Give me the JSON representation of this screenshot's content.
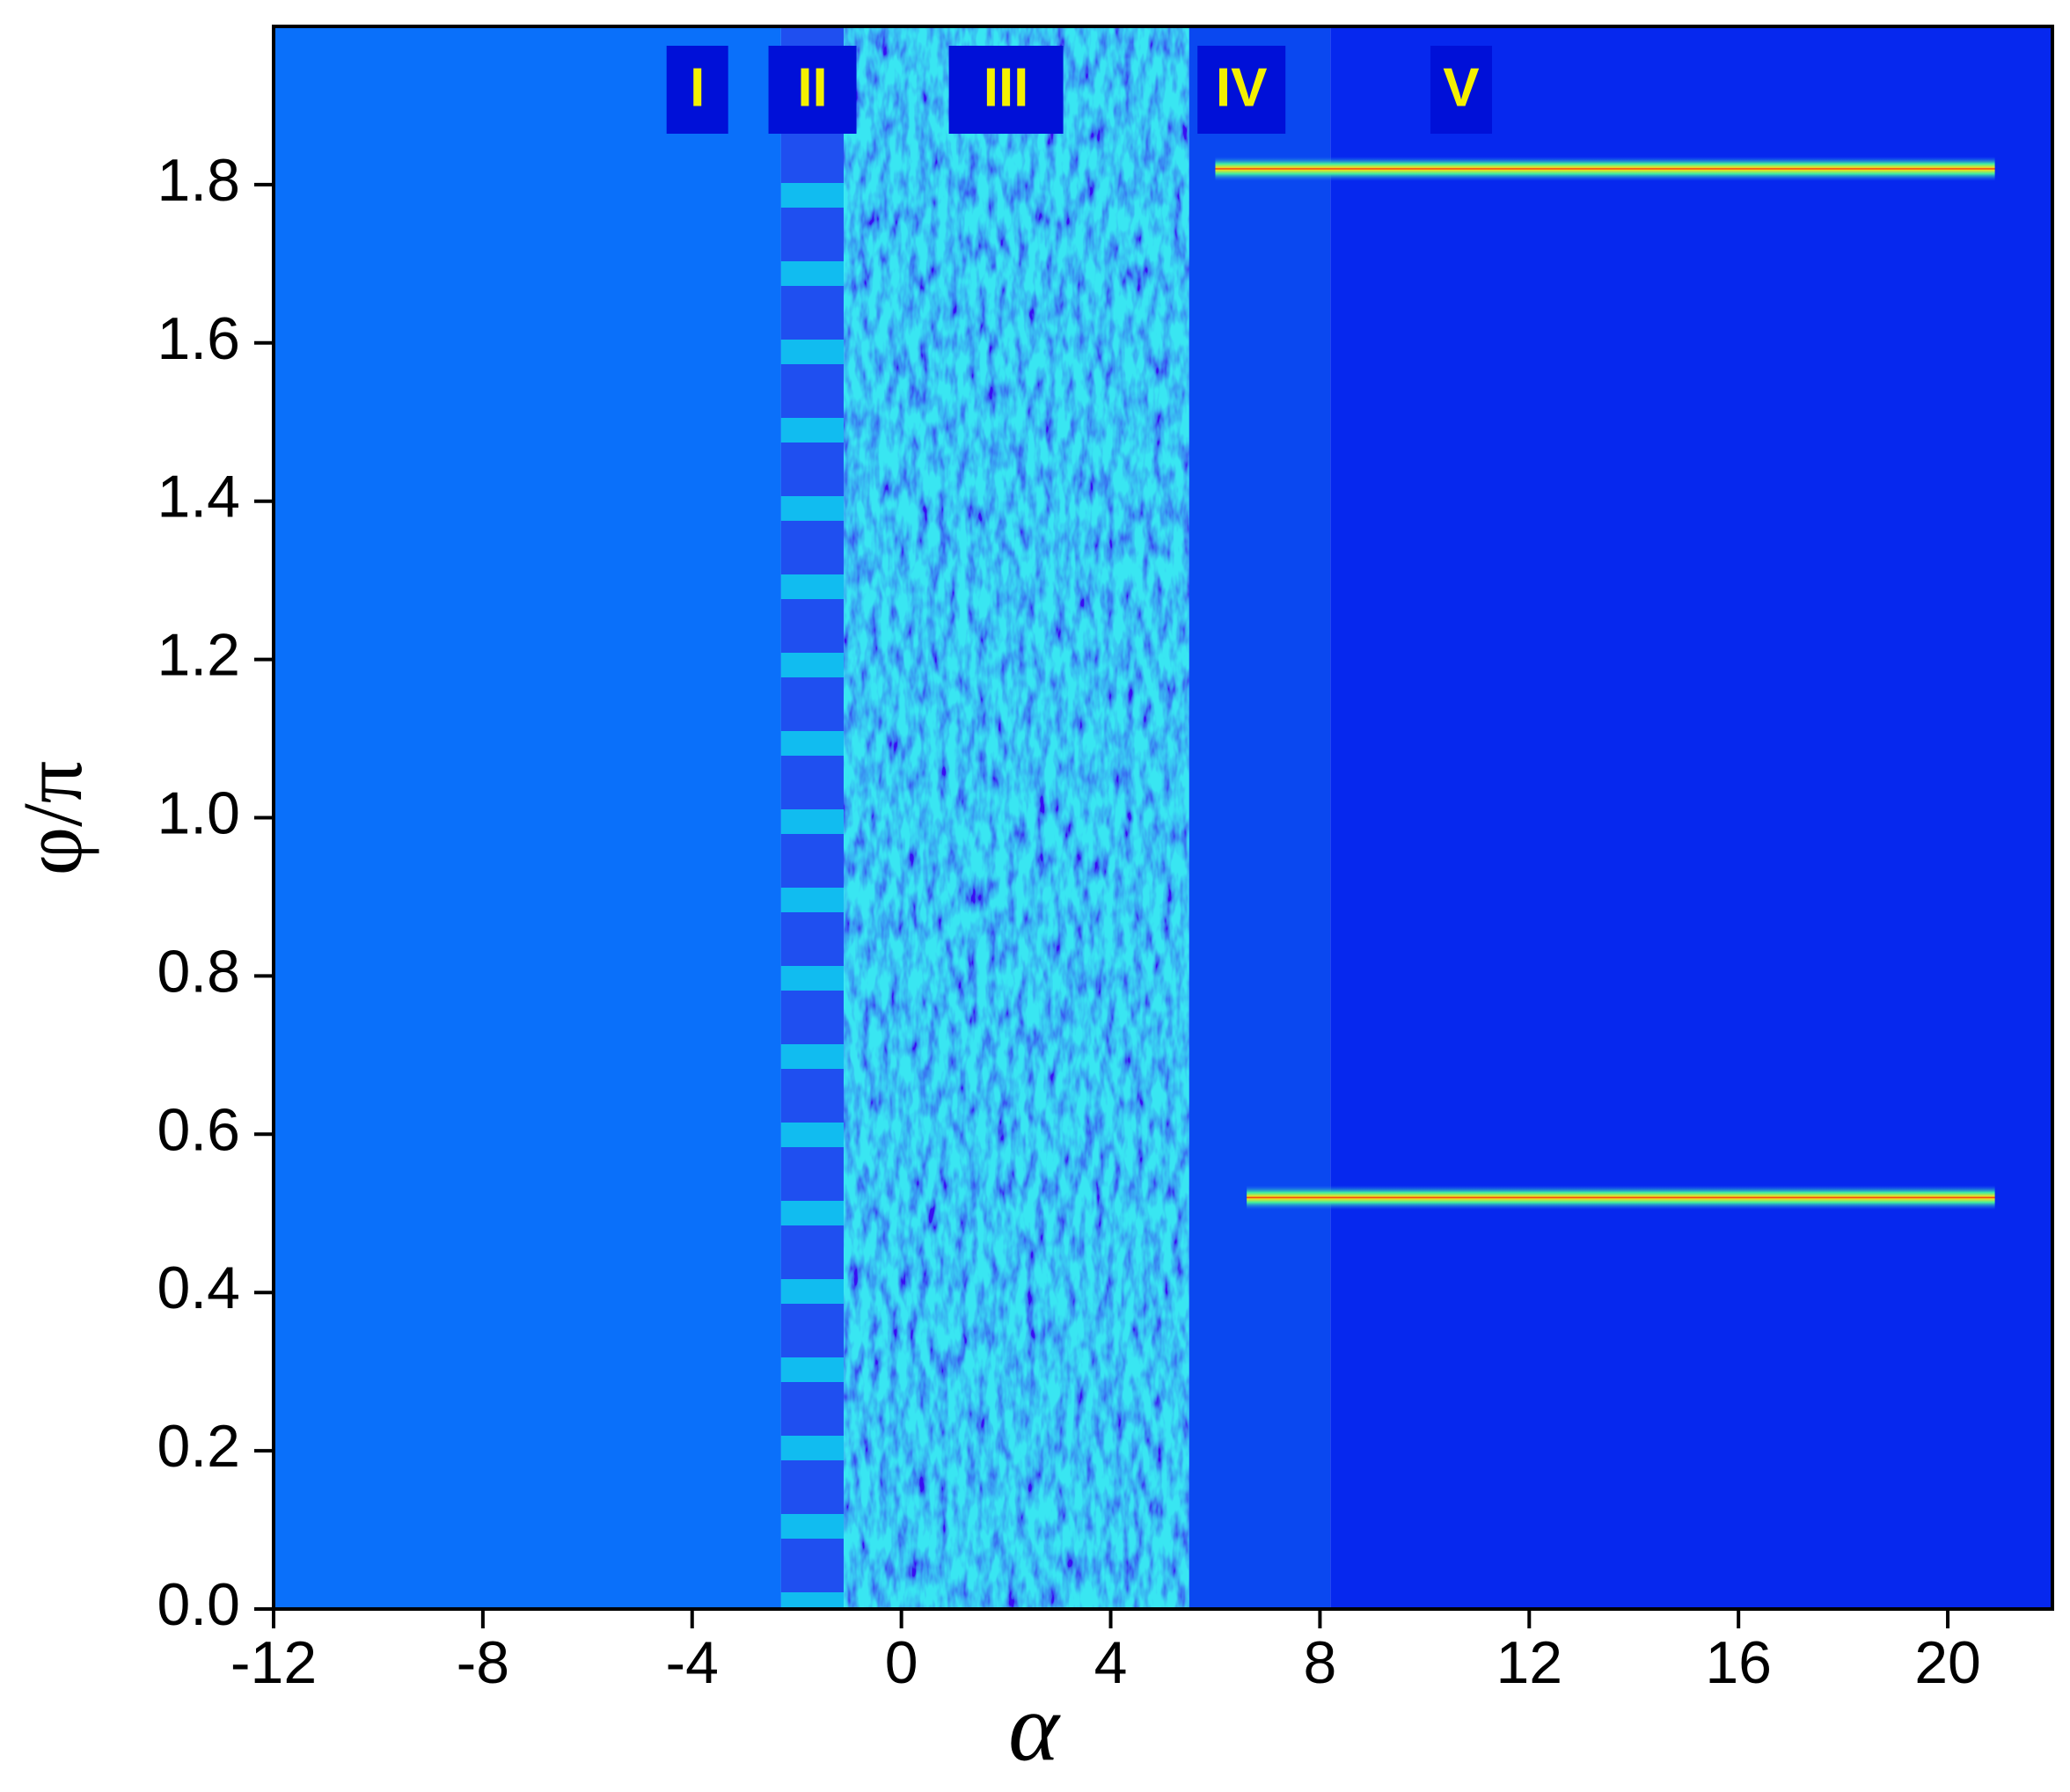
{
  "chart_data": {
    "type": "heatmap",
    "xlabel": "α",
    "ylabel": "φ/π",
    "xlim": [
      -12,
      22
    ],
    "xticks": [
      -12,
      -8,
      -4,
      0,
      4,
      8,
      12,
      16,
      20
    ],
    "ylim": [
      0,
      2
    ],
    "yticks": [
      {
        "value": 0,
        "label": "0.0"
      },
      0.2,
      0.4,
      0.6,
      0.8,
      {
        "value": 1,
        "label": "1.0"
      },
      1.2,
      1.4,
      1.6,
      1.8
    ],
    "regions": [
      {
        "label": "I",
        "x": -3.9,
        "xlim": [
          -12,
          -2.3
        ],
        "color": "#0a70fa"
      },
      {
        "label": "II",
        "x": -1.7,
        "xlim": [
          -2.3,
          -1.1
        ],
        "color": "#1f4ff0"
      },
      {
        "label": "III",
        "x": 2.0,
        "xlim": [
          -1.1,
          5.5
        ],
        "color": "#1a5cf0"
      },
      {
        "label": "IV",
        "x": 6.5,
        "xlim": [
          5.5,
          8.2
        ],
        "color": "#0a48f0"
      },
      {
        "label": "V",
        "x": 10.7,
        "xlim": [
          8.2,
          22
        ],
        "color": "#0628ee"
      }
    ],
    "ridges": [
      {
        "x": [
          6.0,
          20.9
        ],
        "values": [
          1.82,
          1.82
        ]
      },
      {
        "x": [
          6.6,
          20.9
        ],
        "values": [
          0.52,
          0.52
        ]
      }
    ]
  }
}
